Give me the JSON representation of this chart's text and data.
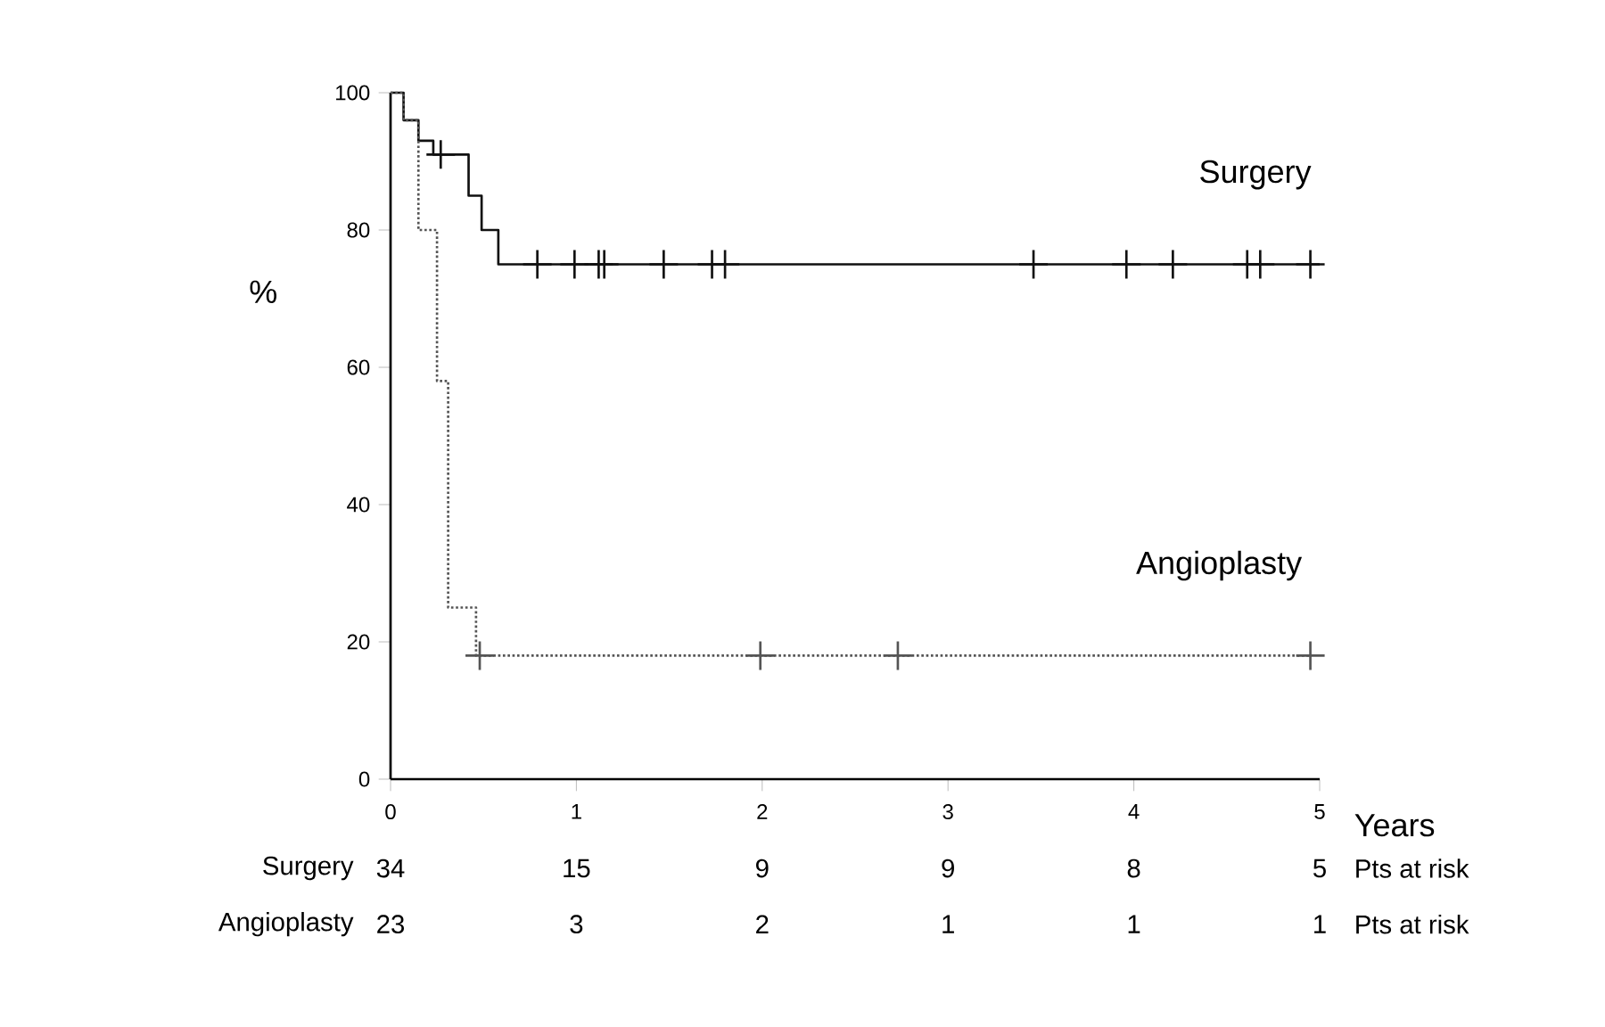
{
  "chart_data": {
    "type": "step",
    "xlabel": "Years",
    "ylabel": "%",
    "xlim": [
      0,
      5
    ],
    "ylim": [
      0,
      100
    ],
    "xticks": [
      0,
      1,
      2,
      3,
      4,
      5
    ],
    "yticks": [
      0,
      20,
      40,
      60,
      80,
      100
    ],
    "series": [
      {
        "name": "Surgery",
        "color": "#111111",
        "line_style": "solid",
        "x": [
          0,
          0.07,
          0.15,
          0.23,
          0.42,
          0.49,
          0.58,
          5.0
        ],
        "values": [
          100,
          96,
          93,
          91,
          85,
          80,
          75,
          75
        ]
      },
      {
        "type": "scatter",
        "color": "#111111",
        "marker": "cross",
        "x": [
          0.27,
          0.79,
          0.99,
          1.12,
          1.15,
          1.47,
          1.73,
          1.8,
          3.46,
          3.96,
          4.21,
          4.61,
          4.68,
          4.95
        ],
        "values": [
          91,
          75,
          75,
          75,
          75,
          75,
          75,
          75,
          75,
          75,
          75,
          75,
          75,
          75
        ]
      },
      {
        "name": "Angioplasty",
        "color": "#555555",
        "line_style": "dotted",
        "x": [
          0,
          0.07,
          0.15,
          0.25,
          0.31,
          0.46,
          4.95
        ],
        "values": [
          100,
          96,
          80,
          58,
          25,
          18,
          18
        ]
      },
      {
        "type": "scatter",
        "color": "#555555",
        "marker": "cross",
        "x": [
          0.48,
          1.99,
          2.73,
          4.95
        ],
        "values": [
          18,
          18,
          18,
          18
        ]
      }
    ],
    "annotations": [
      "Surgery",
      "34",
      "15",
      "9",
      "9",
      "8",
      "5",
      "Pts at risk",
      "Angioplasty",
      "23",
      "3",
      "2",
      "1",
      "1",
      "1",
      "Pts at risk"
    ]
  }
}
